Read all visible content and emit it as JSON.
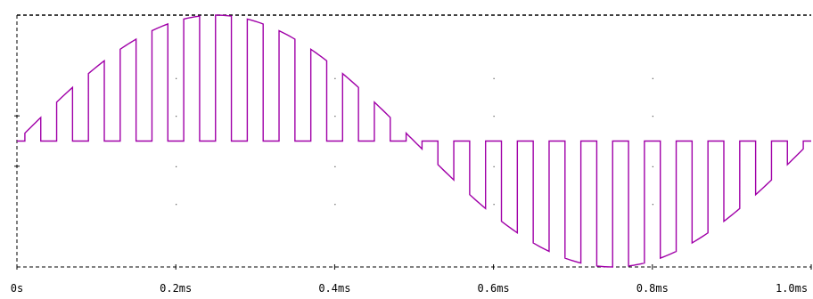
{
  "chart_data": {
    "type": "line",
    "title": "",
    "xlabel": "",
    "ylabel": "",
    "x_ticks": [
      "0s",
      "0.2ms",
      "0.4ms",
      "0.6ms",
      "0.8ms",
      "1.0ms"
    ],
    "x_tick_values": [
      0,
      0.2,
      0.4,
      0.6,
      0.8,
      1.0
    ],
    "xlim": [
      0,
      1.0
    ],
    "ylim": [
      -1,
      1
    ],
    "x_unit": "ms",
    "grid": "dotted",
    "series": [
      {
        "color": "#A000A8",
        "description_values": {
          "envelope": "sine, 1 cycle over 1.0ms, amplitude 1",
          "pulses_per_half_cycle": 12,
          "pulse_width_fraction_of_period": 0.5
        },
        "pulse_period_ms": 0.04,
        "pulse_width_ms": 0.02,
        "amplitude": 1,
        "sine_period_ms": 1.0
      }
    ]
  },
  "colors": {
    "trace": "#A000A8",
    "axis": "#000000",
    "grid": "#000000"
  }
}
